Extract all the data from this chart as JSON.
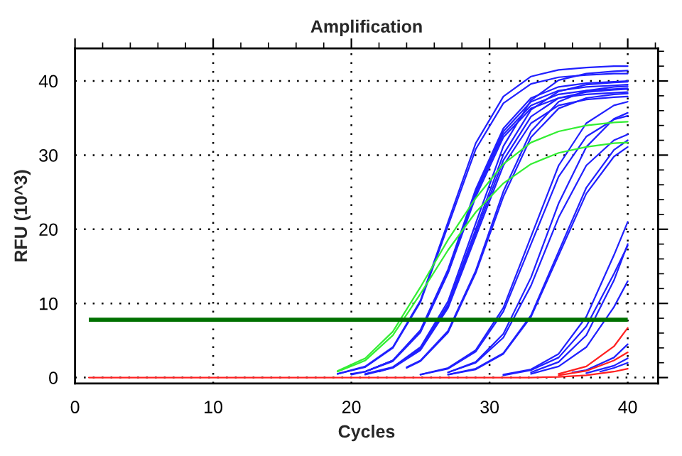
{
  "chart_data": {
    "type": "line",
    "title": "Amplification",
    "xlabel": "Cycles",
    "ylabel": "RFU (10^3)",
    "xlim": [
      0,
      42.2
    ],
    "ylim": [
      -0.8,
      44.4
    ],
    "xticks": [
      0,
      10,
      20,
      30,
      40
    ],
    "yticks": [
      0,
      10,
      20,
      30,
      40
    ],
    "grid": true,
    "legend": false,
    "x": [
      1,
      5,
      10,
      15,
      17,
      19,
      21,
      23,
      25,
      27,
      29,
      31,
      33,
      35,
      37,
      39,
      40
    ],
    "ref_lines": [
      {
        "axis": "y",
        "value": 7.8,
        "color": "#007000"
      }
    ],
    "series": [
      {
        "color": "#2020ff",
        "x": [
          19,
          21,
          23,
          25,
          27,
          29,
          31,
          33,
          35,
          37,
          39,
          40
        ],
        "values": [
          0.5,
          1.5,
          4.1,
          10.4,
          21,
          31.6,
          37.9,
          40.6,
          41.5,
          41.8,
          42,
          42
        ]
      },
      {
        "color": "#2020ff",
        "x": [
          19,
          21,
          23,
          25,
          27,
          29,
          31,
          33,
          35,
          37,
          39,
          40
        ],
        "values": [
          0.5,
          1.4,
          4.0,
          10.2,
          20.5,
          30.8,
          37.0,
          39.6,
          40.5,
          40.8,
          41,
          41
        ]
      },
      {
        "color": "#2020ff",
        "x": [
          21,
          23,
          25,
          27,
          29,
          31,
          33,
          35,
          37,
          39,
          40
        ],
        "values": [
          0.8,
          2.3,
          6.4,
          14.6,
          25.4,
          33.6,
          37.7,
          39.2,
          39.7,
          39.9,
          40
        ]
      },
      {
        "color": "#2020ff",
        "x": [
          20,
          21,
          23,
          25,
          27,
          29,
          31,
          33,
          35,
          37,
          39,
          40
        ],
        "values": [
          0.5,
          0.8,
          2.3,
          6.3,
          14.4,
          25.1,
          33.2,
          37.2,
          38.7,
          39.2,
          39.4,
          39.5
        ]
      },
      {
        "color": "#2020ff",
        "x": [
          21,
          23,
          25,
          27,
          29,
          31,
          33,
          35,
          37,
          39,
          40
        ],
        "values": [
          0.8,
          2.3,
          6.2,
          14.2,
          24.8,
          32.8,
          36.7,
          38.2,
          38.7,
          38.9,
          39
        ]
      },
      {
        "color": "#2020ff",
        "x": [
          20,
          21,
          23,
          25,
          27,
          29,
          31,
          33,
          35,
          37,
          39,
          40
        ],
        "values": [
          0.4,
          0.8,
          2.2,
          6.1,
          14.1,
          24.4,
          32.4,
          36.3,
          37.7,
          38.2,
          38.4,
          38.5
        ]
      },
      {
        "color": "#2020ff",
        "x": [
          21,
          23,
          25,
          27,
          29,
          31,
          33,
          35,
          37,
          39,
          40
        ],
        "values": [
          0.5,
          1.4,
          4.1,
          10.3,
          20.8,
          31.2,
          37.4,
          40.1,
          41,
          41.3,
          41.4
        ]
      },
      {
        "color": "#2020ff",
        "x": [
          23,
          25,
          27,
          29,
          31,
          33,
          35,
          37,
          39,
          40
        ],
        "values": [
          1.4,
          3.9,
          9.9,
          20,
          30.1,
          36.1,
          38.6,
          39.5,
          39.8,
          39.9
        ]
      },
      {
        "color": "#2020ff",
        "x": [
          22,
          23,
          25,
          27,
          29,
          31,
          33,
          35,
          37,
          39,
          40
        ],
        "values": [
          0.8,
          1.4,
          3.8,
          9.7,
          19.5,
          29.3,
          35.2,
          37.7,
          38.5,
          38.8,
          38.9
        ]
      },
      {
        "color": "#2020ff",
        "x": [
          21,
          23,
          25,
          27,
          29,
          31,
          33,
          35,
          37,
          39,
          40
        ],
        "values": [
          0.4,
          1.3,
          3.7,
          9.4,
          19,
          28.6,
          34.3,
          36.7,
          37.5,
          37.8,
          37.9
        ]
      },
      {
        "color": "#2020ff",
        "x": [
          24,
          25,
          27,
          29,
          31,
          33,
          35,
          37,
          39,
          40
        ],
        "values": [
          1.4,
          2.3,
          6.3,
          14.4,
          25.1,
          33.2,
          37.2,
          38.7,
          39.2,
          39.3
        ]
      },
      {
        "color": "#2020ff",
        "x": [
          24,
          25,
          27,
          29,
          31,
          33,
          35,
          37,
          39,
          40
        ],
        "values": [
          1.3,
          2.2,
          6.1,
          14.1,
          24.4,
          32.4,
          36.3,
          37.7,
          38.2,
          38.3
        ]
      },
      {
        "color": "#2020ff",
        "x": [
          25,
          27,
          29,
          31,
          33,
          35,
          37,
          39,
          40
        ],
        "values": [
          0.4,
          1.3,
          3.7,
          9.4,
          19,
          28.6,
          34.3,
          36.7,
          37.2
        ]
      },
      {
        "color": "#2020ff",
        "x": [
          25,
          27,
          29,
          31,
          33,
          35,
          37,
          39,
          40
        ],
        "values": [
          0.4,
          1.2,
          3.5,
          8.9,
          18,
          27.1,
          32.5,
          34.8,
          35.3
        ]
      },
      {
        "color": "#2020ff",
        "x": [
          27,
          29,
          31,
          33,
          35,
          37,
          39,
          40
        ],
        "values": [
          0.7,
          2.1,
          5.9,
          13.5,
          23.5,
          31.1,
          34.9,
          35.7
        ]
      },
      {
        "color": "#2020ff",
        "x": [
          27,
          29,
          31,
          33,
          35,
          37,
          39,
          40
        ],
        "values": [
          0.7,
          2.0,
          5.4,
          12.4,
          21.6,
          28.6,
          32.0,
          32.8
        ]
      },
      {
        "color": "#2020ff",
        "x": [
          27,
          29,
          31,
          33,
          35,
          37,
          39,
          40
        ],
        "values": [
          0.4,
          1.2,
          3.3,
          8.4,
          17,
          25.6,
          30.7,
          32.0
        ]
      },
      {
        "color": "#2020ff",
        "x": [
          27,
          29,
          31,
          33,
          35,
          37,
          39,
          40
        ],
        "values": [
          0.4,
          1.1,
          3.2,
          8.2,
          16.5,
          24.8,
          29.8,
          31.1
        ]
      },
      {
        "color": "#2020ff",
        "x": [
          31,
          33,
          35,
          37,
          39,
          40
        ],
        "values": [
          0.4,
          1.1,
          3.2,
          8.2,
          16.5,
          21.0
        ]
      },
      {
        "color": "#2020ff",
        "x": [
          31,
          33,
          35,
          37,
          39,
          40
        ],
        "values": [
          0.3,
          1.0,
          2.7,
          6.9,
          14,
          17.8
        ]
      },
      {
        "color": "#2020ff",
        "x": [
          33,
          35,
          37,
          39,
          40
        ],
        "values": [
          0.7,
          2.1,
          5.7,
          13.1,
          18
        ]
      },
      {
        "color": "#2020ff",
        "x": [
          33,
          35,
          37,
          39,
          40
        ],
        "values": [
          0.5,
          1.5,
          4.1,
          9.5,
          13
        ]
      },
      {
        "color": "#2020ff",
        "x": [
          36,
          37,
          39,
          40
        ],
        "values": [
          0.7,
          1.0,
          2.7,
          4.5
        ]
      },
      {
        "color": "#2020ff",
        "x": [
          37,
          39,
          40
        ],
        "values": [
          0.6,
          1.6,
          2.6
        ]
      },
      {
        "color": "#2020ff",
        "x": [
          38,
          39,
          40
        ],
        "values": [
          0.8,
          1.3,
          2.0
        ]
      },
      {
        "color": "#33ee33",
        "x": [
          19,
          21,
          23,
          25,
          27,
          29,
          31,
          33,
          35,
          37,
          39,
          40
        ],
        "values": [
          0.9,
          2.6,
          6.2,
          12.2,
          18.6,
          24.2,
          28.8,
          31.7,
          33.2,
          34,
          34.4,
          34.5
        ]
      },
      {
        "color": "#33ee33",
        "x": [
          19,
          21,
          23,
          25,
          27,
          29,
          31,
          33,
          35,
          37,
          39,
          40
        ],
        "values": [
          0.8,
          2.3,
          5.7,
          11.3,
          17.2,
          22.3,
          26.2,
          28.8,
          30.3,
          31.1,
          31.6,
          31.7
        ]
      },
      {
        "color": "#ff2020",
        "x": [
          35,
          37,
          39,
          40
        ],
        "values": [
          0.5,
          1.5,
          4.2,
          6.7
        ]
      },
      {
        "color": "#ff2020",
        "x": [
          35,
          37,
          39,
          40
        ],
        "values": [
          0.3,
          0.9,
          2.3,
          3.4
        ]
      },
      {
        "color": "#ff2020",
        "values": [
          0,
          0,
          0,
          0,
          0,
          0,
          0,
          0,
          0,
          0,
          0,
          0,
          0,
          0.1,
          0.3,
          0.8,
          1.2
        ]
      }
    ]
  }
}
